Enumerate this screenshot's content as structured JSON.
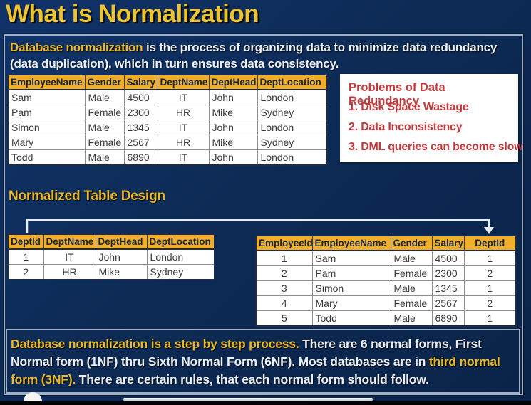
{
  "title": "What is Normalization",
  "intro": {
    "highlight": "Database normalization",
    "rest": " is the process of organizing data to minimize data redundancy (data duplication), which in turn ensures data consistency."
  },
  "employee_table": {
    "headers": [
      "EmployeeName",
      "Gender",
      "Salary",
      "DeptName",
      "DeptHead",
      "DeptLocation"
    ],
    "rows": [
      [
        "Sam",
        "Male",
        "4500",
        "IT",
        "John",
        "London"
      ],
      [
        "Pam",
        "Female",
        "2300",
        "HR",
        "Mike",
        "Sydney"
      ],
      [
        "Simon",
        "Male",
        "1345",
        "IT",
        "John",
        "London"
      ],
      [
        "Mary",
        "Female",
        "2567",
        "HR",
        "Mike",
        "Sydney"
      ],
      [
        "Todd",
        "Male",
        "6890",
        "IT",
        "John",
        "London"
      ]
    ]
  },
  "problems_box": {
    "title": "Problems of Data Redundancy",
    "items": [
      "1. Disk Space Wastage",
      "2. Data Inconsistency",
      "3. DML queries can become slow"
    ]
  },
  "normalized_heading": "Normalized Table Design",
  "dept_table": {
    "headers": [
      "DeptId",
      "DeptName",
      "DeptHead",
      "DeptLocation"
    ],
    "rows": [
      [
        "1",
        "IT",
        "John",
        "London"
      ],
      [
        "2",
        "HR",
        "Mike",
        "Sydney"
      ]
    ]
  },
  "normalized_employee_table": {
    "headers": [
      "EmployeeId",
      "EmployeeName",
      "Gender",
      "Salary",
      "DeptId"
    ],
    "rows": [
      [
        "1",
        "Sam",
        "Male",
        "4500",
        "1"
      ],
      [
        "2",
        "Pam",
        "Female",
        "2300",
        "2"
      ],
      [
        "3",
        "Simon",
        "Male",
        "1345",
        "1"
      ],
      [
        "4",
        "Mary",
        "Female",
        "2567",
        "2"
      ],
      [
        "5",
        "Todd",
        "Male",
        "6890",
        "1"
      ]
    ]
  },
  "footer": {
    "yellow1": "Database normalization is a step by step process.",
    "white1": " There are 6 normal forms, First Normal form (1NF) thru Sixth Normal Form (6NF). Most databases are in ",
    "yellow2": "third normal form (3NF).",
    "white2": " There are certain rules, that each normal form should follow."
  },
  "colors": {
    "background_navy": "#0d2b55",
    "title_yellow": "#edc32f",
    "accent_yellow": "#eab829",
    "table_header_gold": "#f0ae2b",
    "problem_red": "#c23a3c",
    "frame_border": "#9fb0c6",
    "text_white": "#edf1f7"
  }
}
